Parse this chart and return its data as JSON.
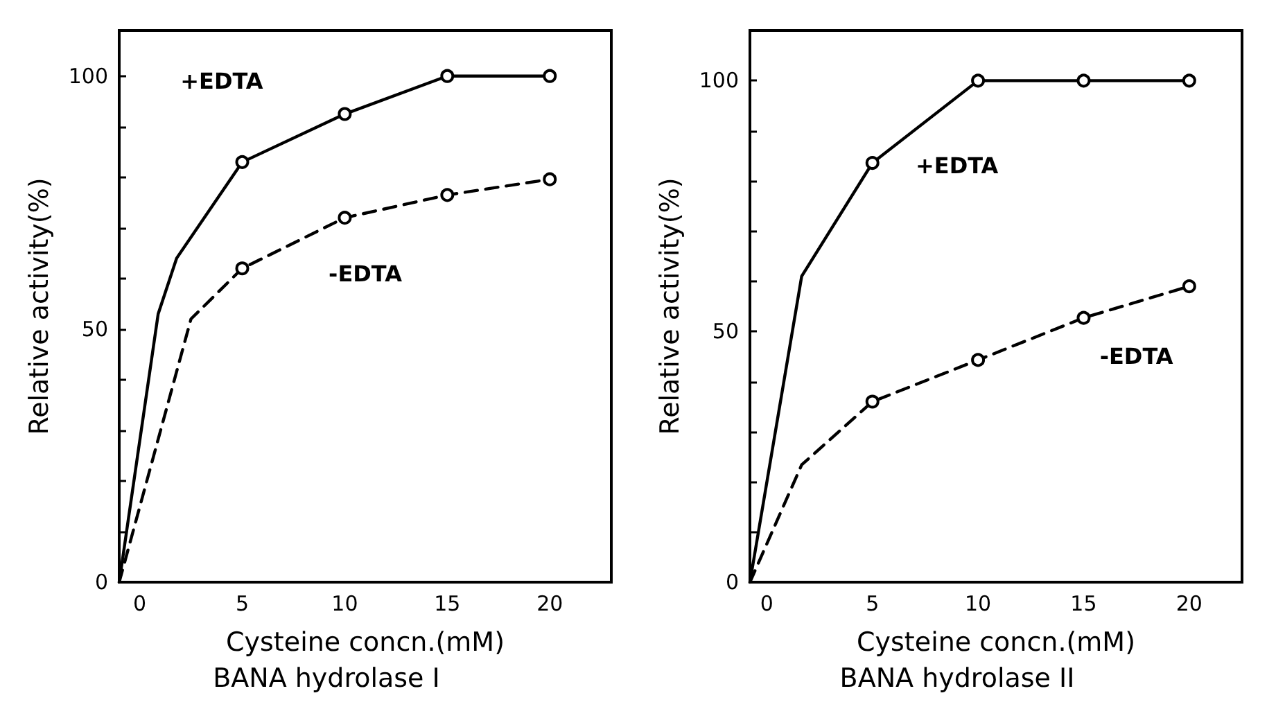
{
  "chart_data": [
    {
      "type": "line",
      "title": "BANA hydrolase I",
      "xlabel": "Cysteine concn.(mM)",
      "ylabel": "Relative activity(%)",
      "xlim": [
        -1,
        23
      ],
      "xticks": [
        0,
        5,
        10,
        15,
        20
      ],
      "ylim": [
        0,
        109
      ],
      "yticks": [
        0,
        {
          "value": 10,
          "label": null
        },
        {
          "value": 20,
          "label": null
        },
        {
          "value": 30,
          "label": null
        },
        {
          "value": 40,
          "label": null
        },
        50,
        {
          "value": 60,
          "label": null
        },
        {
          "value": 70,
          "label": null
        },
        {
          "value": 80,
          "label": null
        },
        {
          "value": 90,
          "label": null
        },
        100
      ],
      "grid": false,
      "legend": false,
      "marker": "circle",
      "series": [
        {
          "name": "+EDTA",
          "color": "#000000",
          "line_style": "solid",
          "x": [
            -1,
            0.9,
            1.8,
            5,
            10,
            15,
            20
          ],
          "values": [
            0,
            53,
            64,
            83,
            92.5,
            100,
            100
          ]
        },
        {
          "name": "-EDTA",
          "color": "#000000",
          "line_style": "dashed",
          "x": [
            -1,
            2.5,
            5,
            10,
            15,
            20
          ],
          "values": [
            0,
            52,
            62,
            72,
            76.5,
            79.6
          ]
        }
      ]
    },
    {
      "type": "line",
      "title": "BANA hydrolase II",
      "xlabel": "Cysteine concn.(mM)",
      "ylabel": "Relative activity(%)",
      "xlim": [
        -0.8,
        22.5
      ],
      "xticks": [
        0,
        5,
        10,
        15,
        20
      ],
      "ylim": [
        0,
        110
      ],
      "yticks": [
        0,
        {
          "value": 10,
          "label": null
        },
        {
          "value": 20,
          "label": null
        },
        {
          "value": 30,
          "label": null
        },
        {
          "value": 40,
          "label": null
        },
        50,
        {
          "value": 60,
          "label": null
        },
        {
          "value": 70,
          "label": null
        },
        {
          "value": 80,
          "label": null
        },
        {
          "value": 90,
          "label": null
        },
        100
      ],
      "grid": false,
      "legend": false,
      "marker": "circle",
      "series": [
        {
          "name": "+EDTA",
          "color": "#000000",
          "line_style": "solid",
          "x": [
            -0.8,
            1.65,
            5,
            10,
            15,
            20
          ],
          "values": [
            0,
            61,
            83.6,
            100,
            100,
            100
          ]
        },
        {
          "name": "-EDTA",
          "color": "#000000",
          "line_style": "dashed",
          "x": [
            -0.8,
            1.65,
            5,
            10,
            15,
            20
          ],
          "values": [
            0,
            23.4,
            36,
            44.3,
            52.7,
            59
          ]
        }
      ]
    }
  ]
}
